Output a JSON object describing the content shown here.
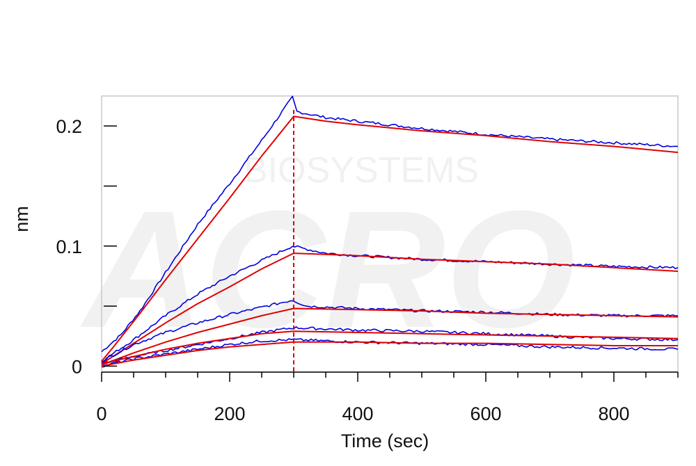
{
  "chart_data": {
    "type": "line",
    "xlabel": "Time (sec)",
    "ylabel": "nm",
    "xlim": [
      0,
      900
    ],
    "ylim": [
      -0.005,
      0.225
    ],
    "x_ticks": [
      0,
      200,
      400,
      600,
      800
    ],
    "x_tick_labels": [
      "0",
      "200",
      "400",
      "600",
      "800"
    ],
    "y_ticks": [
      0,
      0.05,
      0.1,
      0.15,
      0.2
    ],
    "y_tick_labels": [
      "0",
      "",
      "0.1",
      "",
      "0.2"
    ],
    "grid": false,
    "vertical_marker": {
      "x": 300,
      "color": "#e00000",
      "style": "dashed"
    },
    "watermark_text": "BIOSYSTEMS",
    "colors": {
      "measured": "#0000dd",
      "fit": "#e00000",
      "frame": "#c8c8c8"
    },
    "series": [
      {
        "points": [
          [
            0,
            0.012
          ],
          [
            30,
            0.026
          ],
          [
            60,
            0.046
          ],
          [
            100,
            0.078
          ],
          [
            150,
            0.118
          ],
          [
            200,
            0.152
          ],
          [
            250,
            0.188
          ],
          [
            298,
            0.224
          ],
          [
            305,
            0.212
          ],
          [
            350,
            0.207
          ],
          [
            400,
            0.204
          ],
          [
            500,
            0.198
          ],
          [
            600,
            0.193
          ],
          [
            700,
            0.189
          ],
          [
            800,
            0.186
          ],
          [
            900,
            0.183
          ]
        ]
      },
      {
        "points": [
          [
            0,
            0.004
          ],
          [
            20,
            0.017
          ],
          [
            60,
            0.044
          ],
          [
            100,
            0.072
          ],
          [
            150,
            0.106
          ],
          [
            200,
            0.14
          ],
          [
            250,
            0.175
          ],
          [
            300,
            0.208
          ],
          [
            350,
            0.204
          ],
          [
            400,
            0.201
          ],
          [
            500,
            0.196
          ],
          [
            600,
            0.192
          ],
          [
            700,
            0.187
          ],
          [
            800,
            0.183
          ],
          [
            900,
            0.178
          ]
        ]
      },
      {
        "points": [
          [
            0,
            0.004
          ],
          [
            50,
            0.022
          ],
          [
            100,
            0.042
          ],
          [
            150,
            0.06
          ],
          [
            200,
            0.075
          ],
          [
            250,
            0.088
          ],
          [
            298,
            0.1
          ],
          [
            350,
            0.094
          ],
          [
            400,
            0.092
          ],
          [
            500,
            0.089
          ],
          [
            600,
            0.087
          ],
          [
            700,
            0.085
          ],
          [
            800,
            0.083
          ],
          [
            900,
            0.082
          ]
        ]
      },
      {
        "points": [
          [
            0,
            0.002
          ],
          [
            50,
            0.019
          ],
          [
            100,
            0.036
          ],
          [
            150,
            0.052
          ],
          [
            200,
            0.066
          ],
          [
            250,
            0.081
          ],
          [
            300,
            0.094
          ],
          [
            350,
            0.093
          ],
          [
            400,
            0.092
          ],
          [
            500,
            0.089
          ],
          [
            600,
            0.087
          ],
          [
            700,
            0.085
          ],
          [
            800,
            0.082
          ],
          [
            900,
            0.079
          ]
        ]
      },
      {
        "points": [
          [
            0,
            0.004
          ],
          [
            50,
            0.018
          ],
          [
            100,
            0.028
          ],
          [
            150,
            0.036
          ],
          [
            200,
            0.043
          ],
          [
            250,
            0.049
          ],
          [
            298,
            0.055
          ],
          [
            320,
            0.05
          ],
          [
            400,
            0.048
          ],
          [
            500,
            0.046
          ],
          [
            600,
            0.045
          ],
          [
            700,
            0.043
          ],
          [
            800,
            0.042
          ],
          [
            900,
            0.042
          ]
        ]
      },
      {
        "points": [
          [
            0,
            0.001
          ],
          [
            50,
            0.011
          ],
          [
            100,
            0.02
          ],
          [
            150,
            0.028
          ],
          [
            200,
            0.035
          ],
          [
            250,
            0.042
          ],
          [
            300,
            0.048
          ],
          [
            400,
            0.047
          ],
          [
            500,
            0.046
          ],
          [
            600,
            0.044
          ],
          [
            700,
            0.043
          ],
          [
            800,
            0.042
          ],
          [
            900,
            0.041
          ]
        ]
      },
      {
        "points": [
          [
            0,
            0.002
          ],
          [
            50,
            0.008
          ],
          [
            100,
            0.013
          ],
          [
            150,
            0.018
          ],
          [
            200,
            0.023
          ],
          [
            250,
            0.028
          ],
          [
            300,
            0.032
          ],
          [
            350,
            0.031
          ],
          [
            400,
            0.03
          ],
          [
            500,
            0.029
          ],
          [
            600,
            0.027
          ],
          [
            700,
            0.025
          ],
          [
            800,
            0.023
          ],
          [
            900,
            0.022
          ]
        ]
      },
      {
        "points": [
          [
            0,
            0.002
          ],
          [
            50,
            0.008
          ],
          [
            100,
            0.014
          ],
          [
            150,
            0.019
          ],
          [
            200,
            0.023
          ],
          [
            250,
            0.027
          ],
          [
            300,
            0.029
          ],
          [
            400,
            0.028
          ],
          [
            500,
            0.027
          ],
          [
            600,
            0.026
          ],
          [
            700,
            0.025
          ],
          [
            800,
            0.024
          ],
          [
            900,
            0.023
          ]
        ]
      },
      {
        "points": [
          [
            0,
            0.0
          ],
          [
            50,
            0.006
          ],
          [
            100,
            0.01
          ],
          [
            150,
            0.014
          ],
          [
            200,
            0.018
          ],
          [
            250,
            0.021
          ],
          [
            300,
            0.022
          ],
          [
            350,
            0.021
          ],
          [
            400,
            0.02
          ],
          [
            500,
            0.019
          ],
          [
            600,
            0.018
          ],
          [
            700,
            0.016
          ],
          [
            800,
            0.015
          ],
          [
            900,
            0.014
          ]
        ]
      },
      {
        "points": [
          [
            0,
            0.0
          ],
          [
            50,
            0.005
          ],
          [
            100,
            0.009
          ],
          [
            150,
            0.013
          ],
          [
            200,
            0.016
          ],
          [
            250,
            0.018
          ],
          [
            300,
            0.02
          ],
          [
            400,
            0.02
          ],
          [
            500,
            0.019
          ],
          [
            600,
            0.019
          ],
          [
            700,
            0.018
          ],
          [
            800,
            0.017
          ],
          [
            900,
            0.017
          ]
        ]
      }
    ]
  }
}
